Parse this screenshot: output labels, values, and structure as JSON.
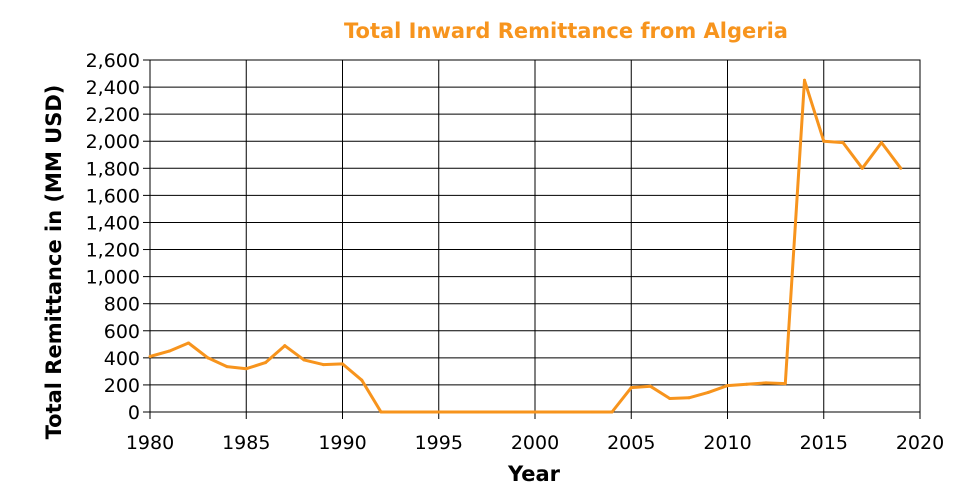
{
  "chart_data": {
    "type": "line",
    "title": "Total Inward Remittance from Algeria",
    "xlabel": "Year",
    "ylabel": "Total Remittance in (MM USD)",
    "xlim": [
      1980,
      2020
    ],
    "ylim": [
      0,
      2600
    ],
    "x_ticks": [
      1980,
      1985,
      1990,
      1995,
      2000,
      2005,
      2010,
      2015,
      2020
    ],
    "x_tick_labels": [
      "1980",
      "1985",
      "1990",
      "1995",
      "2000",
      "2005",
      "2010",
      "2015",
      "2020"
    ],
    "y_ticks": [
      0,
      200,
      400,
      600,
      800,
      1000,
      1200,
      1400,
      1600,
      1800,
      2000,
      2200,
      2400,
      2600
    ],
    "y_tick_labels": [
      "0",
      "200",
      "400",
      "600",
      "800",
      "1,000",
      "1,200",
      "1,400",
      "1,600",
      "1,800",
      "2,000",
      "2,200",
      "2,400",
      "2,600"
    ],
    "grid": true,
    "colors": {
      "line": "#f7941d",
      "title": "#f7941d",
      "grid": "#000000"
    },
    "series": [
      {
        "x": [
          1980,
          1981,
          1982,
          1983,
          1984,
          1985,
          1986,
          1987,
          1988,
          1989,
          1990,
          1991,
          1992,
          1993,
          1994,
          1995,
          1996,
          1997,
          1998,
          1999,
          2000,
          2001,
          2002,
          2003,
          2004,
          2005,
          2006,
          2007,
          2008,
          2009,
          2010,
          2011,
          2012,
          2013,
          2014,
          2015,
          2016,
          2017,
          2018,
          2019
        ],
        "values": [
          410,
          450,
          510,
          400,
          335,
          320,
          365,
          490,
          385,
          350,
          355,
          235,
          0,
          0,
          0,
          0,
          0,
          0,
          0,
          0,
          0,
          0,
          0,
          0,
          0,
          180,
          190,
          100,
          105,
          145,
          195,
          205,
          215,
          210,
          2450,
          2000,
          1990,
          1800,
          1990,
          1800
        ]
      }
    ]
  }
}
